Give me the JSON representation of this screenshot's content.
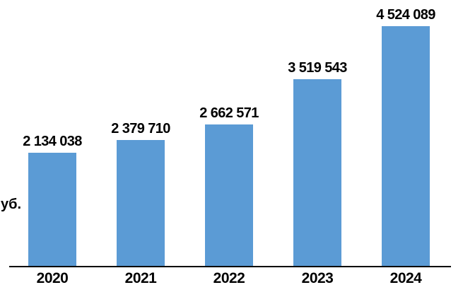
{
  "chart_data": {
    "type": "bar",
    "title": "",
    "categories": [
      "2020",
      "2021",
      "2022",
      "2023",
      "2024"
    ],
    "values": [
      2134038,
      2379710,
      2662571,
      3519543,
      4524089
    ],
    "value_labels": [
      "2 134 038",
      "2 379 710",
      "2 662 571",
      "3 519 543",
      "4 524 089"
    ],
    "series_name": "",
    "ylabel_visible_fragment": "уб.",
    "xlabel": "",
    "ylim": [
      0,
      4524089
    ],
    "grid": false,
    "legend": false,
    "value_axis_visible": false,
    "bar_color": "#5B9BD5",
    "text_color": "#000000",
    "axis_line_color": "#000000"
  }
}
